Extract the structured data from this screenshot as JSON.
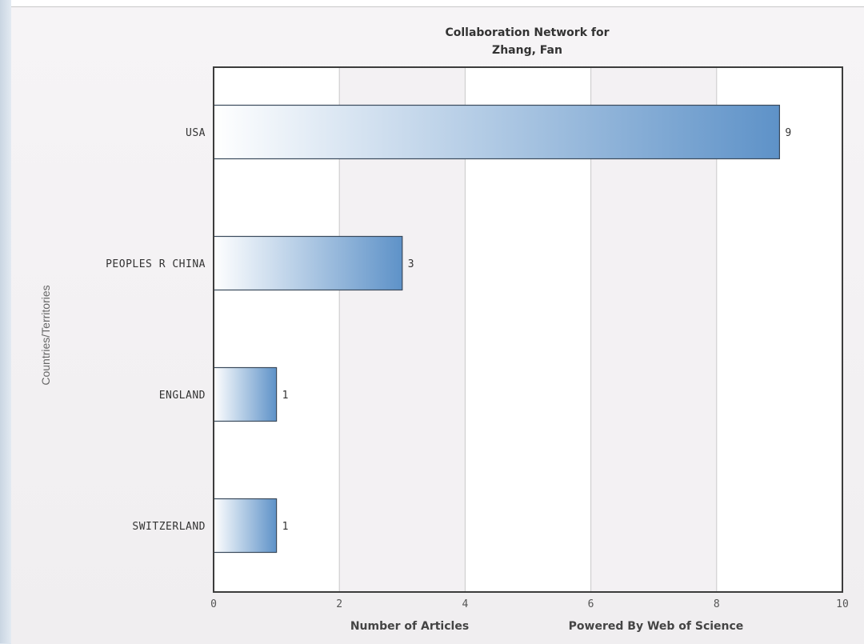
{
  "chart_data": {
    "type": "bar",
    "orientation": "horizontal",
    "title": [
      "Collaboration Network for",
      "Zhang, Fan"
    ],
    "categories": [
      "USA",
      "PEOPLES R CHINA",
      "ENGLAND",
      "SWITZERLAND"
    ],
    "values": [
      9,
      3,
      1,
      1
    ],
    "data_labels": [
      "9",
      "3",
      "1",
      "1"
    ],
    "xlabel": "Number of Articles",
    "ylabel": "Countries/Territories",
    "xlim": [
      0,
      10
    ],
    "x_ticks": [
      0,
      2,
      4,
      6,
      8,
      10
    ],
    "credit": "Powered By Web of Science",
    "grid": true,
    "colors": {
      "bar_start": "#ffffff",
      "bar_end": "#5e92c8",
      "bar_border": "#3a4a5c",
      "plot_background": "#ffffff",
      "alt_band": "#f3f1f3",
      "grid": "#c9c9c9",
      "frame": "#3c3c3c"
    }
  }
}
